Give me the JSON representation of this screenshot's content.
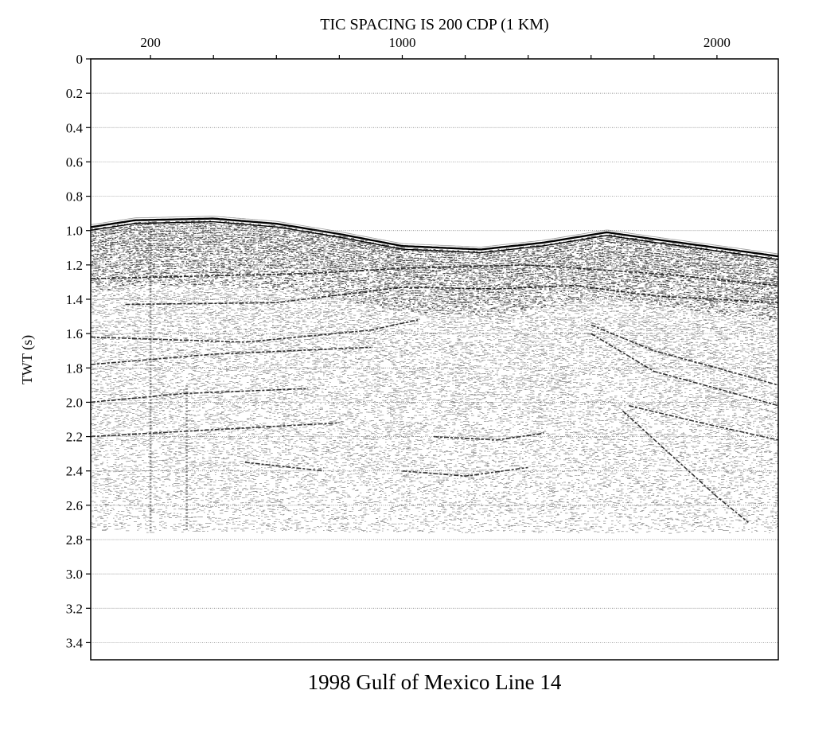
{
  "chart_data": {
    "type": "seismic-section",
    "title": "1998 Gulf of Mexico Line 14",
    "top_axis_title": "TIC SPACING IS 200 CDP (1 KM)",
    "ylabel": "TWT (s)",
    "xlabel": "",
    "x_unit": "CDP",
    "x_range": [
      10,
      2195
    ],
    "x_tick_spacing": 200,
    "x_tick_labels": [
      {
        "cdp": 200,
        "label": "200"
      },
      {
        "cdp": 1000,
        "label": "1000"
      },
      {
        "cdp": 2000,
        "label": "2000"
      }
    ],
    "ylim": [
      0,
      3.5
    ],
    "y_inverted": true,
    "y_ticks": [
      0,
      0.2,
      0.4,
      0.6,
      0.8,
      1.0,
      1.2,
      1.4,
      1.6,
      1.8,
      2.0,
      2.2,
      2.4,
      2.6,
      2.8,
      3.0,
      3.2,
      3.4
    ],
    "y_tick_labels": [
      "0",
      "0.2",
      "0.4",
      "0.6",
      "0.8",
      "1.0",
      "1.2",
      "1.4",
      "1.6",
      "1.8",
      "2.0",
      "2.2",
      "2.4",
      "2.6",
      "2.8",
      "3.0",
      "3.2",
      "3.4"
    ],
    "grid": "horizontal-dotted",
    "data_end_twt": 2.75,
    "seafloor_twt": [
      {
        "cdp": 10,
        "twt": 0.98
      },
      {
        "cdp": 150,
        "twt": 0.94
      },
      {
        "cdp": 400,
        "twt": 0.93
      },
      {
        "cdp": 600,
        "twt": 0.96
      },
      {
        "cdp": 800,
        "twt": 1.02
      },
      {
        "cdp": 1000,
        "twt": 1.09
      },
      {
        "cdp": 1250,
        "twt": 1.11
      },
      {
        "cdp": 1450,
        "twt": 1.07
      },
      {
        "cdp": 1650,
        "twt": 1.01
      },
      {
        "cdp": 1800,
        "twt": 1.05
      },
      {
        "cdp": 2000,
        "twt": 1.1
      },
      {
        "cdp": 2195,
        "twt": 1.15
      }
    ],
    "reflectors": [
      [
        {
          "cdp": 10,
          "twt": 1.28
        },
        {
          "cdp": 700,
          "twt": 1.25
        },
        {
          "cdp": 1000,
          "twt": 1.22
        },
        {
          "cdp": 1400,
          "twt": 1.2
        },
        {
          "cdp": 1800,
          "twt": 1.25
        },
        {
          "cdp": 2195,
          "twt": 1.32
        }
      ],
      [
        {
          "cdp": 120,
          "twt": 1.43
        },
        {
          "cdp": 600,
          "twt": 1.42
        },
        {
          "cdp": 1000,
          "twt": 1.33
        },
        {
          "cdp": 1300,
          "twt": 1.34
        },
        {
          "cdp": 1550,
          "twt": 1.32
        },
        {
          "cdp": 1800,
          "twt": 1.38
        },
        {
          "cdp": 2195,
          "twt": 1.42
        }
      ],
      [
        {
          "cdp": 10,
          "twt": 1.62
        },
        {
          "cdp": 500,
          "twt": 1.65
        },
        {
          "cdp": 900,
          "twt": 1.58
        },
        {
          "cdp": 1050,
          "twt": 1.52
        }
      ],
      [
        {
          "cdp": 10,
          "twt": 1.78
        },
        {
          "cdp": 400,
          "twt": 1.72
        },
        {
          "cdp": 900,
          "twt": 1.68
        }
      ],
      [
        {
          "cdp": 1600,
          "twt": 1.55
        },
        {
          "cdp": 1800,
          "twt": 1.7
        },
        {
          "cdp": 2000,
          "twt": 1.8
        },
        {
          "cdp": 2195,
          "twt": 1.9
        }
      ],
      [
        {
          "cdp": 1600,
          "twt": 1.6
        },
        {
          "cdp": 1800,
          "twt": 1.82
        },
        {
          "cdp": 2000,
          "twt": 1.92
        },
        {
          "cdp": 2195,
          "twt": 2.02
        }
      ],
      [
        {
          "cdp": 10,
          "twt": 2.0
        },
        {
          "cdp": 300,
          "twt": 1.95
        },
        {
          "cdp": 700,
          "twt": 1.92
        }
      ],
      [
        {
          "cdp": 10,
          "twt": 2.2
        },
        {
          "cdp": 400,
          "twt": 2.16
        },
        {
          "cdp": 800,
          "twt": 2.12
        }
      ],
      [
        {
          "cdp": 1100,
          "twt": 2.2
        },
        {
          "cdp": 1300,
          "twt": 2.22
        },
        {
          "cdp": 1450,
          "twt": 2.18
        }
      ],
      [
        {
          "cdp": 500,
          "twt": 2.35
        },
        {
          "cdp": 750,
          "twt": 2.4
        }
      ],
      [
        {
          "cdp": 1000,
          "twt": 2.4
        },
        {
          "cdp": 1200,
          "twt": 2.43
        },
        {
          "cdp": 1400,
          "twt": 2.38
        }
      ],
      [
        {
          "cdp": 1700,
          "twt": 2.05
        },
        {
          "cdp": 1850,
          "twt": 2.3
        },
        {
          "cdp": 2000,
          "twt": 2.55
        },
        {
          "cdp": 2100,
          "twt": 2.7
        }
      ],
      [
        {
          "cdp": 1720,
          "twt": 2.02
        },
        {
          "cdp": 1950,
          "twt": 2.12
        },
        {
          "cdp": 2195,
          "twt": 2.22
        }
      ]
    ],
    "vertical_noise_traces": [
      {
        "cdp": 200,
        "twt_range": [
          1.0,
          2.75
        ]
      },
      {
        "cdp": 315,
        "twt_range": [
          1.9,
          2.75
        ]
      }
    ]
  }
}
